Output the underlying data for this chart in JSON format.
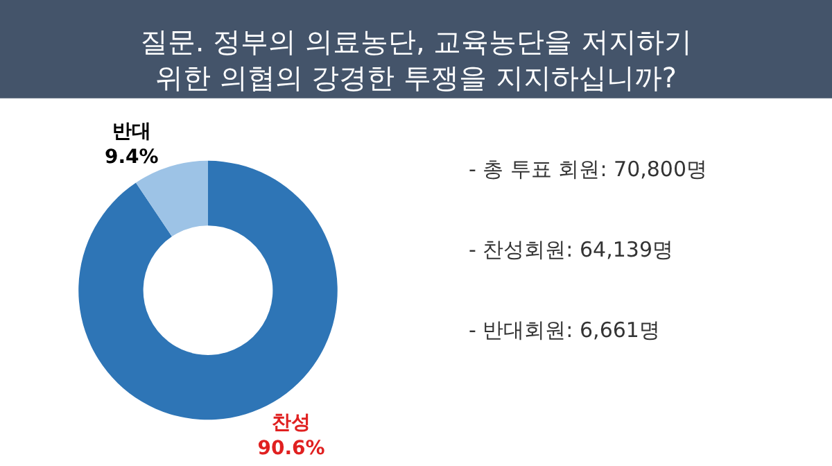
{
  "chart_data": {
    "type": "donut",
    "title": "질문. 정부의 의료농단, 교육농단을 저지하기\n위한 의협의 강경한 투쟁을 지지하십니까?",
    "categories": [
      "찬성",
      "반대"
    ],
    "values": [
      90.6,
      9.4
    ],
    "colors": [
      "#2e75b6",
      "#9dc3e6"
    ],
    "value_labels": [
      "90.6%",
      "9.4%"
    ],
    "legend": false,
    "annotations": [
      "- 총 투표 회원: 70,800명",
      "- 찬성회원: 64,139명",
      "- 반대회원: 6,661명"
    ]
  }
}
